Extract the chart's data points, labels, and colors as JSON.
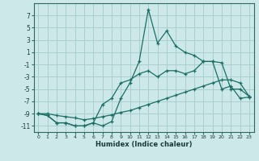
{
  "xlabel": "Humidex (Indice chaleur)",
  "background_color": "#cce8e8",
  "grid_color": "#aacfcf",
  "line_color": "#1a6e64",
  "x_values": [
    0,
    1,
    2,
    3,
    4,
    5,
    6,
    7,
    8,
    9,
    10,
    11,
    12,
    13,
    14,
    15,
    16,
    17,
    18,
    19,
    20,
    21,
    22,
    23
  ],
  "series1": [
    -9,
    -9.3,
    -10.5,
    -10.5,
    -11,
    -11,
    -10.5,
    -11,
    -10.3,
    -6.5,
    -4,
    -0.5,
    8,
    2.5,
    4.5,
    2,
    1,
    0.5,
    -0.5,
    -0.5,
    -5,
    -4.5,
    -6.5,
    -6.3
  ],
  "series2": [
    -9,
    -9.3,
    -10.5,
    -10.5,
    -11,
    -11,
    -10.5,
    -7.5,
    -6.5,
    -4,
    -3.5,
    -2.5,
    -2,
    -3,
    -2,
    -2,
    -2.5,
    -2,
    -0.5,
    -0.5,
    -0.7,
    -5,
    -5,
    -6.2
  ],
  "series3": [
    -9,
    -9,
    -9.3,
    -9.5,
    -9.7,
    -10,
    -9.8,
    -9.5,
    -9.2,
    -8.8,
    -8.5,
    -8.0,
    -7.5,
    -7.0,
    -6.5,
    -6.0,
    -5.5,
    -5.0,
    -4.5,
    -4.0,
    -3.5,
    -3.5,
    -4.0,
    -6.2
  ],
  "ylim": [
    -12,
    9
  ],
  "xlim": [
    -0.5,
    23.5
  ],
  "yticks": [
    -11,
    -9,
    -7,
    -5,
    -3,
    -1,
    1,
    3,
    5,
    7
  ],
  "xticks": [
    0,
    1,
    2,
    3,
    4,
    5,
    6,
    7,
    8,
    9,
    10,
    11,
    12,
    13,
    14,
    15,
    16,
    17,
    18,
    19,
    20,
    21,
    22,
    23
  ]
}
